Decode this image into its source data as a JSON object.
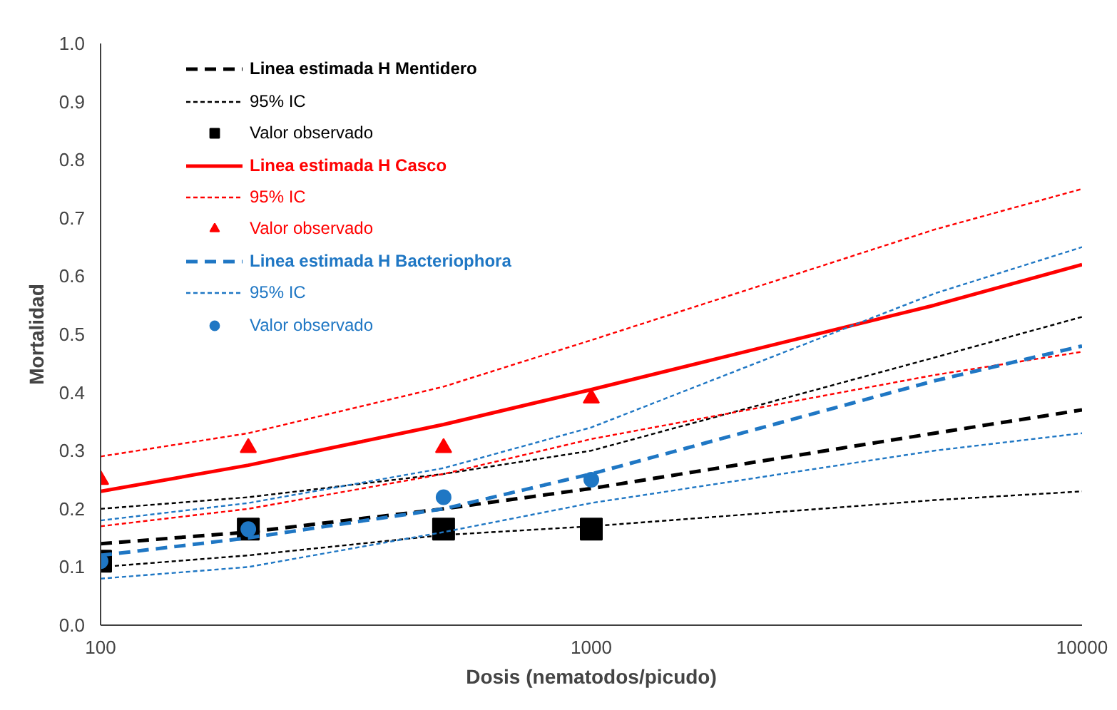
{
  "chart_data": {
    "type": "line",
    "xlabel": "Dosis (nematodos/picudo)",
    "ylabel": "Mortalidad",
    "log": "x",
    "xlim": [
      100,
      10000
    ],
    "xticks": [
      100,
      1000,
      10000
    ],
    "ylim": [
      0,
      1
    ],
    "yticks": [
      {
        "value": 0,
        "label": "0.0"
      },
      0.1,
      0.2,
      0.3,
      0.4,
      0.5,
      0.6,
      0.7,
      0.8,
      0.9,
      {
        "value": 1,
        "label": "1.0"
      }
    ],
    "grid": false,
    "legend": "top left",
    "series": [
      {
        "name": "Linea estimada H Mentidero",
        "line_style": "dashed",
        "color": "#000000",
        "x": [
          100,
          200,
          500,
          1000,
          5000,
          10000
        ],
        "values": [
          0.14,
          0.16,
          0.2,
          0.235,
          0.33,
          0.37
        ]
      },
      {
        "name": "95% IC",
        "line_style": "dotted",
        "color": "#000000",
        "x": [
          100,
          200,
          500,
          1000,
          5000,
          10000
        ],
        "values": [
          0.2,
          0.22,
          0.26,
          0.3,
          0.46,
          0.53
        ]
      },
      {
        "line_style": "dotted",
        "color": "#000000",
        "x": [
          100,
          200,
          500,
          1000,
          5000,
          10000
        ],
        "values": [
          0.1,
          0.12,
          0.155,
          0.17,
          0.215,
          0.23
        ]
      },
      {
        "name": "Valor observado",
        "type": "scatter",
        "marker": "square",
        "color": "#000000",
        "x": [
          100,
          200,
          500,
          1000
        ],
        "values": [
          0.11,
          0.165,
          0.165,
          0.165
        ]
      },
      {
        "name": "Linea estimada H Casco",
        "line_style": "solid",
        "color": "#ff0000",
        "x": [
          100,
          200,
          500,
          1000,
          5000,
          10000
        ],
        "values": [
          0.23,
          0.275,
          0.345,
          0.405,
          0.55,
          0.62
        ]
      },
      {
        "name": "95% IC",
        "line_style": "dotted",
        "color": "#ff0000",
        "x": [
          100,
          200,
          500,
          1000,
          5000,
          10000
        ],
        "values": [
          0.29,
          0.33,
          0.41,
          0.49,
          0.68,
          0.75
        ]
      },
      {
        "line_style": "dotted",
        "color": "#ff0000",
        "x": [
          100,
          200,
          500,
          1000,
          5000,
          10000
        ],
        "values": [
          0.17,
          0.2,
          0.26,
          0.32,
          0.43,
          0.47
        ]
      },
      {
        "name": "Valor observado",
        "type": "scatter",
        "marker": "triangle",
        "color": "#ff0000",
        "x": [
          100,
          200,
          500,
          1000
        ],
        "values": [
          0.25,
          0.305,
          0.305,
          0.39
        ]
      },
      {
        "name": "Linea estimada H Bacteriophora",
        "line_style": "dashed",
        "color": "#1f77c4",
        "x": [
          100,
          200,
          500,
          1000,
          5000,
          10000
        ],
        "values": [
          0.12,
          0.15,
          0.2,
          0.26,
          0.42,
          0.48
        ]
      },
      {
        "name": "95% IC",
        "line_style": "dotted",
        "color": "#1f77c4",
        "x": [
          100,
          200,
          500,
          1000,
          5000,
          10000
        ],
        "values": [
          0.18,
          0.21,
          0.27,
          0.34,
          0.57,
          0.65
        ]
      },
      {
        "line_style": "dotted",
        "color": "#1f77c4",
        "x": [
          100,
          200,
          500,
          1000,
          5000,
          10000
        ],
        "values": [
          0.08,
          0.1,
          0.16,
          0.21,
          0.3,
          0.33
        ]
      },
      {
        "name": "Valor observado",
        "type": "scatter",
        "marker": "circle",
        "color": "#1f77c4",
        "x": [
          100,
          200,
          500,
          1000
        ],
        "values": [
          0.11,
          0.165,
          0.22,
          0.25
        ]
      }
    ]
  }
}
